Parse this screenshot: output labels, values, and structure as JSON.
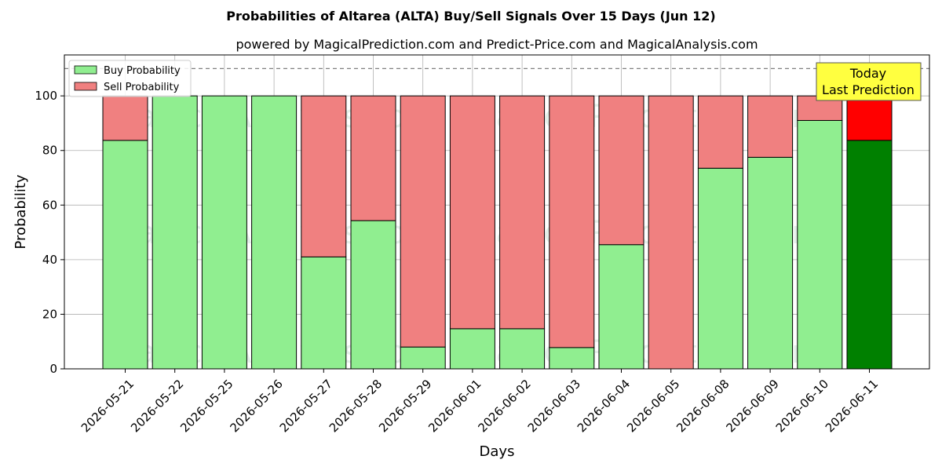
{
  "chart_data": {
    "type": "bar",
    "stacked": true,
    "title": "Probabilities of Altarea (ALTA) Buy/Sell Signals Over 15 Days (Jun 12)",
    "subtitle": "powered by MagicalPrediction.com and Predict-Price.com and MagicalAnalysis.com",
    "xlabel": "Days",
    "ylabel": "Probability",
    "ylim": [
      0,
      115
    ],
    "yticks": [
      "0",
      "20",
      "40",
      "60",
      "80",
      "100"
    ],
    "grid": true,
    "legend_position": "top-left",
    "categories": [
      "2026-05-21",
      "2026-05-22",
      "2026-05-25",
      "2026-05-26",
      "2026-05-27",
      "2026-05-28",
      "2026-05-29",
      "2026-06-01",
      "2026-06-02",
      "2026-06-03",
      "2026-06-04",
      "2026-06-05",
      "2026-06-08",
      "2026-06-09",
      "2026-06-10",
      "2026-06-11"
    ],
    "series": [
      {
        "name": "Buy Probability",
        "color": "#90ee90",
        "highlight_color": "#008000",
        "values": [
          83.7,
          100,
          100,
          100,
          41.0,
          54.3,
          8.0,
          14.7,
          14.7,
          7.8,
          45.5,
          0.0,
          73.5,
          77.5,
          91.0,
          83.7
        ]
      },
      {
        "name": "Sell Probability",
        "color": "#f08080",
        "highlight_color": "#ff0000",
        "values": [
          16.3,
          0,
          0,
          0,
          59.0,
          45.7,
          92.0,
          85.3,
          85.3,
          92.2,
          54.5,
          100.0,
          26.5,
          22.5,
          9.0,
          16.3
        ]
      }
    ],
    "reference_line": {
      "value": 110,
      "style": "dashed"
    },
    "annotation": {
      "lines": [
        "Today",
        "Last Prediction"
      ],
      "background": "#ffff40"
    },
    "watermarks": [
      "MagicalAnalysis.com",
      "MagicalPrediction.com"
    ]
  }
}
